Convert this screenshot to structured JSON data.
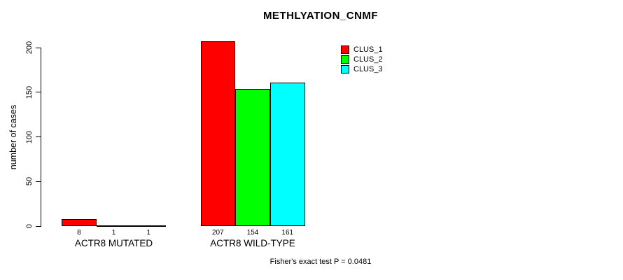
{
  "figure": {
    "background_color": "#ffffff",
    "text_color": "#000000"
  },
  "chart_data": {
    "type": "bar",
    "title": "METHLYATION_CNMF",
    "xlabel": "",
    "ylabel": "number of cases",
    "ylim": [
      0,
      200
    ],
    "yticks": [
      0,
      50,
      100,
      150,
      200
    ],
    "grid": false,
    "legend_position": "top-right",
    "bar_outline_color": "#000000",
    "categories": [
      "ACTR8 MUTATED",
      "ACTR8 WILD-TYPE"
    ],
    "series": [
      {
        "name": "CLUS_1",
        "color": "#FF0000",
        "values": [
          8,
          207
        ]
      },
      {
        "name": "CLUS_2",
        "color": "#00FF00",
        "values": [
          1,
          154
        ]
      },
      {
        "name": "CLUS_3",
        "color": "#00FFFF",
        "values": [
          1,
          161
        ]
      }
    ],
    "bar_value_labels": [
      [
        "8",
        "1",
        "1"
      ],
      [
        "207",
        "154",
        "161"
      ]
    ],
    "annotation": "Fisher's exact test P = 0.0481"
  }
}
